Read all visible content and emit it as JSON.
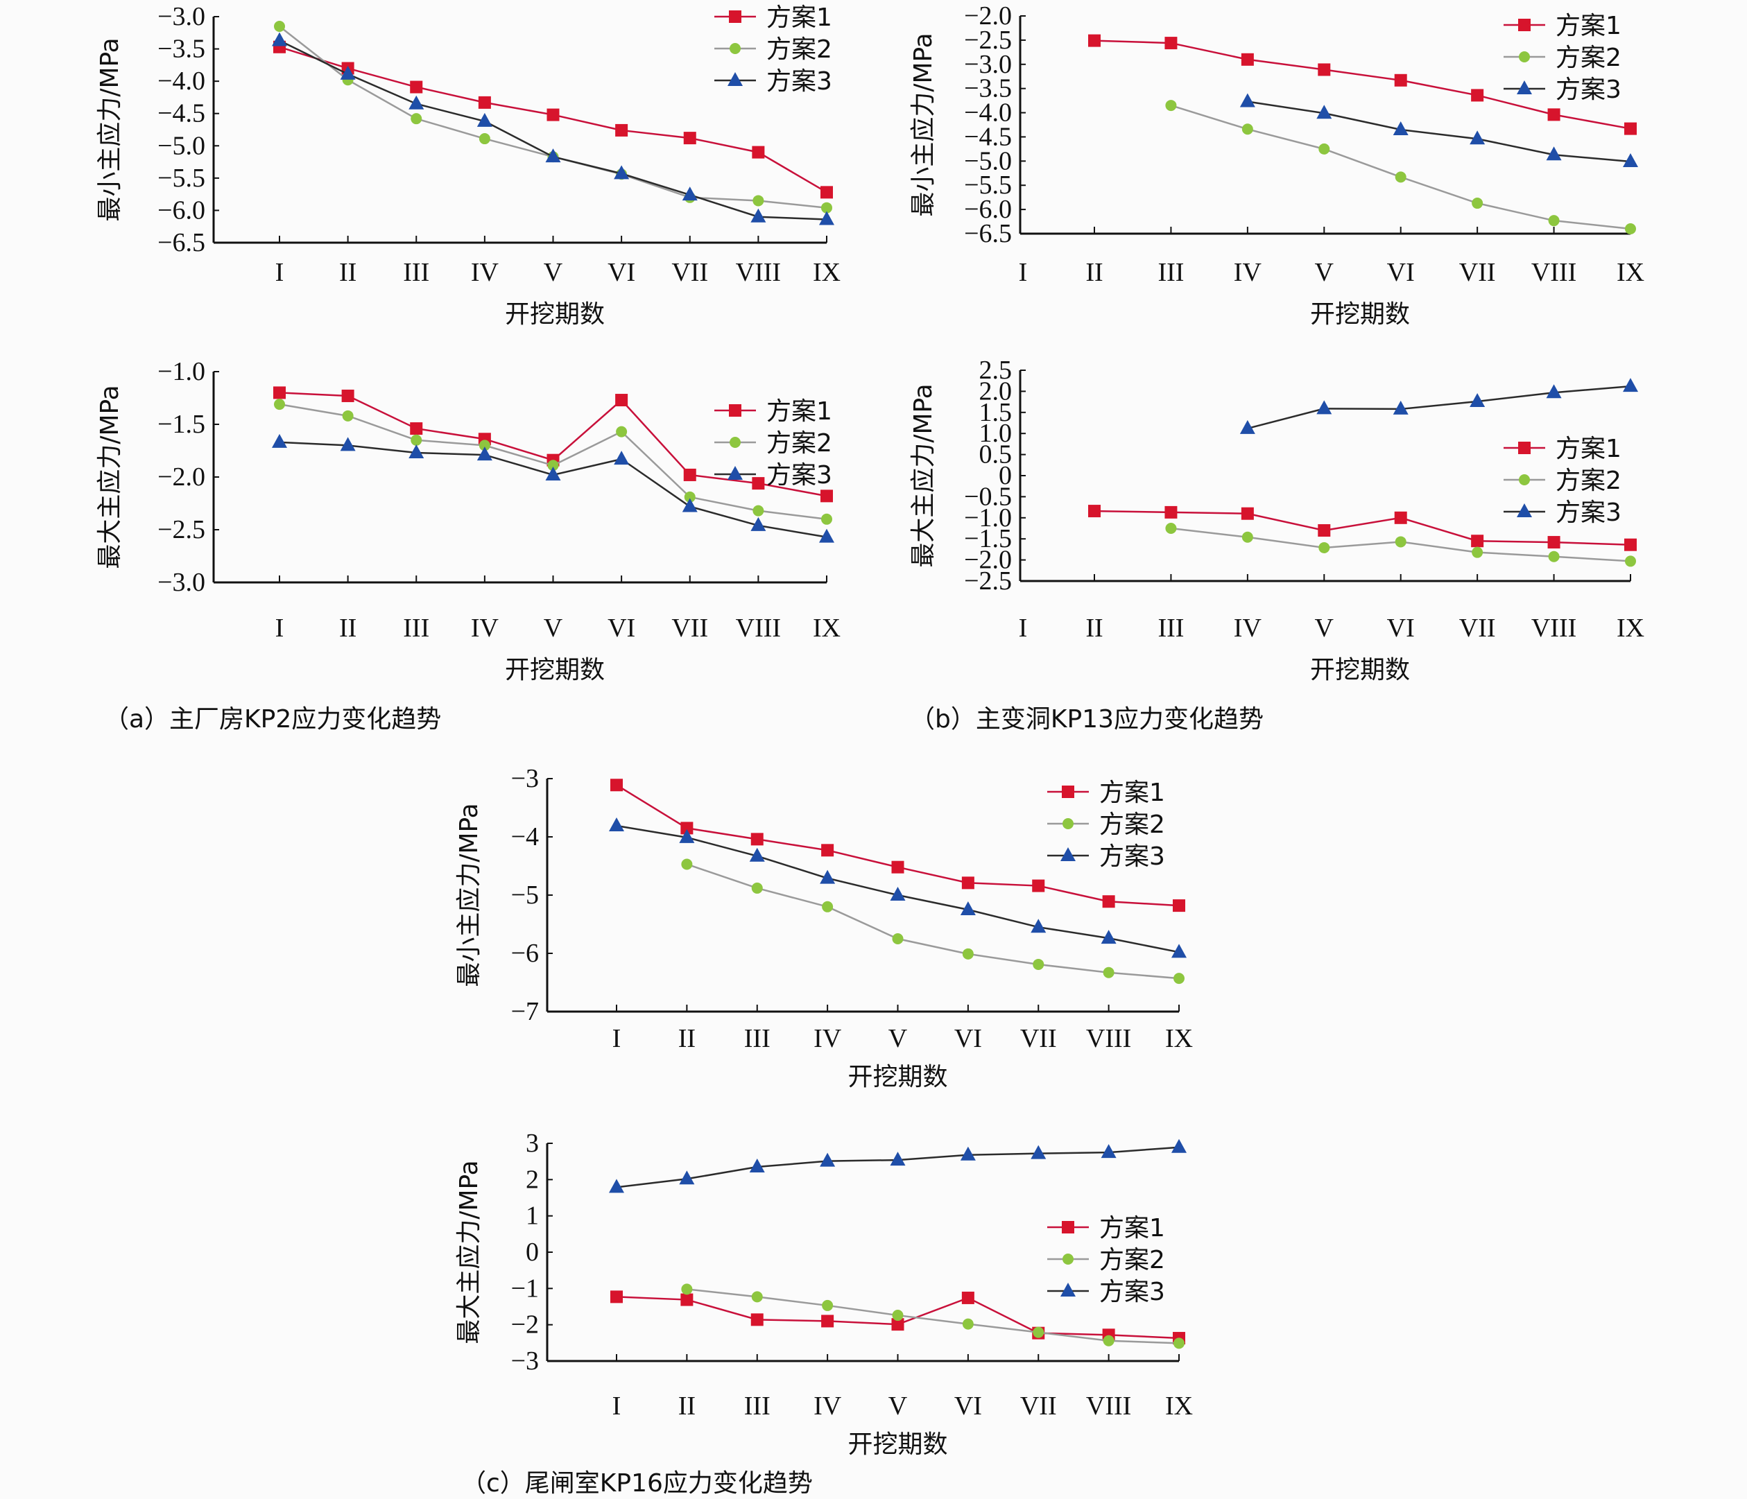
{
  "figure": {
    "captions": {
      "a": "（a）主厂房KP2应力变化趋势",
      "b": "（b）主变洞KP13应力变化趋势",
      "c": "（c）尾闸室KP16应力变化趋势"
    },
    "series_colors": {
      "方案1": "#d7142c",
      "方案2": "#8dc63f",
      "方案3": "#1f4ea8"
    },
    "line_colors": {
      "方案1": "#c8103a",
      "方案2": "#9a9a9a",
      "方案3": "#2b2b2b"
    }
  },
  "chart_data": [
    {
      "id": "a-min",
      "type": "line",
      "panel": "a",
      "title": "",
      "xlabel": "开挖期数",
      "ylabel": "最小主应力/MPa",
      "categories": [
        "I",
        "II",
        "III",
        "IV",
        "V",
        "VI",
        "VII",
        "VIII",
        "IX"
      ],
      "ylim": [
        -6.5,
        -3.0
      ],
      "yticks": [
        -3.0,
        -3.5,
        -4.0,
        -4.5,
        -5.0,
        -5.5,
        -6.0,
        -6.5
      ],
      "ytick_labels": [
        "−3.0",
        "−3.5",
        "−4.0",
        "−4.5",
        "−5.0",
        "−5.5",
        "−6.0",
        "−6.5"
      ],
      "legend": "top-right",
      "grid": false,
      "series": [
        {
          "name": "方案1",
          "marker": "square",
          "values": [
            -3.47,
            -3.8,
            -4.09,
            -4.33,
            -4.52,
            -4.76,
            -4.88,
            -5.1,
            -5.72
          ]
        },
        {
          "name": "方案2",
          "marker": "circle",
          "values": [
            -3.15,
            -3.98,
            -4.58,
            -4.89,
            -5.17,
            -5.44,
            -5.8,
            -5.85,
            -5.96
          ]
        },
        {
          "name": "方案3",
          "marker": "triangle",
          "values": [
            -3.37,
            -3.89,
            -4.35,
            -4.62,
            -5.17,
            -5.43,
            -5.76,
            -6.1,
            -6.14
          ]
        }
      ]
    },
    {
      "id": "a-max",
      "type": "line",
      "panel": "a",
      "title": "",
      "xlabel": "开挖期数",
      "ylabel": "最大主应力/MPa",
      "categories": [
        "I",
        "II",
        "III",
        "IV",
        "V",
        "VI",
        "VII",
        "VIII",
        "IX"
      ],
      "ylim": [
        -3.0,
        -1.0
      ],
      "yticks": [
        -1.0,
        -1.5,
        -2.0,
        -2.5,
        -3.0
      ],
      "ytick_labels": [
        "−1.0",
        "−1.5",
        "−2.0",
        "−2.5",
        "−3.0"
      ],
      "legend": "right",
      "grid": false,
      "series": [
        {
          "name": "方案1",
          "marker": "square",
          "values": [
            -1.2,
            -1.23,
            -1.54,
            -1.64,
            -1.84,
            -1.27,
            -1.98,
            -2.06,
            -2.18
          ]
        },
        {
          "name": "方案2",
          "marker": "circle",
          "values": [
            -1.31,
            -1.42,
            -1.65,
            -1.7,
            -1.89,
            -1.57,
            -2.19,
            -2.32,
            -2.4
          ]
        },
        {
          "name": "方案3",
          "marker": "triangle",
          "values": [
            -1.67,
            -1.7,
            -1.77,
            -1.79,
            -1.98,
            -1.83,
            -2.28,
            -2.46,
            -2.57
          ]
        }
      ]
    },
    {
      "id": "b-min",
      "type": "line",
      "panel": "b",
      "title": "",
      "xlabel": "开挖期数",
      "ylabel": "最小主应力/MPa",
      "categories": [
        "I",
        "II",
        "III",
        "IV",
        "V",
        "VI",
        "VII",
        "VIII",
        "IX"
      ],
      "ylim": [
        -6.5,
        -2.0
      ],
      "yticks": [
        -2.0,
        -2.5,
        -3.0,
        -3.5,
        -4.0,
        -4.5,
        -5.0,
        -5.5,
        -6.0,
        -6.5
      ],
      "ytick_labels": [
        "−2.0",
        "−2.5",
        "−3.0",
        "−3.5",
        "−4.0",
        "−4.5",
        "−5.0",
        "−5.5",
        "−6.0",
        "−6.5"
      ],
      "legend": "top-right",
      "grid": false,
      "series": [
        {
          "name": "方案1",
          "marker": "square",
          "values": [
            null,
            -2.51,
            -2.56,
            -2.9,
            -3.11,
            -3.33,
            -3.64,
            -4.04,
            -4.33
          ]
        },
        {
          "name": "方案2",
          "marker": "circle",
          "values": [
            null,
            null,
            -3.85,
            -4.34,
            -4.75,
            -5.33,
            -5.87,
            -6.23,
            -6.4
          ]
        },
        {
          "name": "方案3",
          "marker": "triangle",
          "values": [
            null,
            null,
            null,
            -3.77,
            -4.01,
            -4.35,
            -4.54,
            -4.87,
            -5.01
          ]
        }
      ]
    },
    {
      "id": "b-max",
      "type": "line",
      "panel": "b",
      "title": "",
      "xlabel": "开挖期数",
      "ylabel": "最大主应力/MPa",
      "categories": [
        "I",
        "II",
        "III",
        "IV",
        "V",
        "VI",
        "VII",
        "VIII",
        "IX"
      ],
      "ylim": [
        -2.5,
        2.5
      ],
      "yticks": [
        2.5,
        2.0,
        1.5,
        1.0,
        0.5,
        0,
        -0.5,
        -1.0,
        -1.5,
        -2.0,
        -2.5
      ],
      "ytick_labels": [
        "2.5",
        "2.0",
        "1.5",
        "1.0",
        "0.5",
        "0",
        "−0.5",
        "−1.0",
        "−1.5",
        "−2.0",
        "−2.5"
      ],
      "legend": "right",
      "grid": false,
      "series": [
        {
          "name": "方案1",
          "marker": "square",
          "values": [
            null,
            -0.84,
            -0.87,
            -0.9,
            -1.3,
            -1.0,
            -1.55,
            -1.58,
            -1.64
          ]
        },
        {
          "name": "方案2",
          "marker": "circle",
          "values": [
            null,
            null,
            -1.25,
            -1.46,
            -1.71,
            -1.57,
            -1.82,
            -1.92,
            -2.03
          ]
        },
        {
          "name": "方案3",
          "marker": "triangle",
          "values": [
            null,
            null,
            null,
            1.12,
            1.59,
            1.58,
            1.76,
            1.97,
            2.12
          ]
        }
      ]
    },
    {
      "id": "c-min",
      "type": "line",
      "panel": "c",
      "title": "",
      "xlabel": "开挖期数",
      "ylabel": "最小主应力/MPa",
      "categories": [
        "I",
        "II",
        "III",
        "IV",
        "V",
        "VI",
        "VII",
        "VIII",
        "IX"
      ],
      "ylim": [
        -7,
        -3
      ],
      "yticks": [
        -3,
        -4,
        -5,
        -6,
        -7
      ],
      "ytick_labels": [
        "−3",
        "−4",
        "−5",
        "−6",
        "−7"
      ],
      "legend": "top-right",
      "grid": false,
      "series": [
        {
          "name": "方案1",
          "marker": "square",
          "values": [
            -3.11,
            -3.85,
            -4.04,
            -4.23,
            -4.52,
            -4.79,
            -4.84,
            -5.11,
            -5.18
          ]
        },
        {
          "name": "方案2",
          "marker": "circle",
          "values": [
            null,
            -4.47,
            -4.88,
            -5.2,
            -5.75,
            -6.01,
            -6.19,
            -6.33,
            -6.43
          ]
        },
        {
          "name": "方案3",
          "marker": "triangle",
          "values": [
            -3.81,
            -4.01,
            -4.33,
            -4.71,
            -5.0,
            -5.25,
            -5.55,
            -5.74,
            -5.98
          ]
        }
      ]
    },
    {
      "id": "c-max",
      "type": "line",
      "panel": "c",
      "title": "",
      "xlabel": "开挖期数",
      "ylabel": "最大主应力/MPa",
      "categories": [
        "I",
        "II",
        "III",
        "IV",
        "V",
        "VI",
        "VII",
        "VIII",
        "IX"
      ],
      "ylim": [
        -3,
        3
      ],
      "yticks": [
        3,
        2,
        1,
        0,
        -1,
        -2,
        -3
      ],
      "ytick_labels": [
        "3",
        "2",
        "1",
        "0",
        "−1",
        "−2",
        "−3"
      ],
      "legend": "right",
      "grid": false,
      "series": [
        {
          "name": "方案1",
          "marker": "square",
          "values": [
            -1.23,
            -1.31,
            -1.86,
            -1.9,
            -1.99,
            -1.26,
            -2.23,
            -2.28,
            -2.37
          ]
        },
        {
          "name": "方案2",
          "marker": "circle",
          "values": [
            null,
            -1.02,
            -1.23,
            -1.47,
            -1.74,
            -1.98,
            -2.21,
            -2.44,
            -2.51
          ]
        },
        {
          "name": "方案3",
          "marker": "triangle",
          "values": [
            1.79,
            2.02,
            2.35,
            2.51,
            2.54,
            2.68,
            2.72,
            2.75,
            2.89
          ]
        }
      ]
    }
  ]
}
